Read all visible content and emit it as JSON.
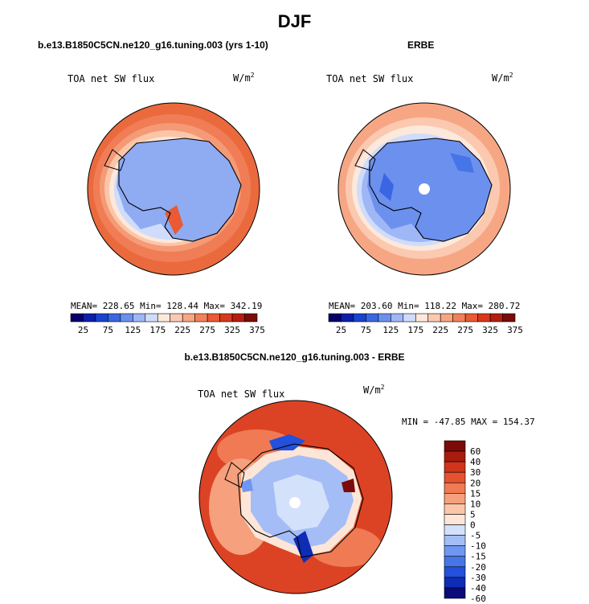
{
  "page_title": "DJF",
  "palette": {
    "absolute": [
      "#08006a",
      "#0c1fa8",
      "#1a43d0",
      "#3a66e2",
      "#6c90ee",
      "#9fb7f5",
      "#cfdcfb",
      "#fde8dc",
      "#fbc9b0",
      "#f7a684",
      "#f2805c",
      "#e95a35",
      "#d6391e",
      "#b51d10",
      "#7c0a08"
    ],
    "difference": [
      "#0a0a7a",
      "#0f2cb5",
      "#2350dc",
      "#4675e8",
      "#6f96f0",
      "#a4bdf6",
      "#d3e1fb",
      "#fde6d7",
      "#fbc6a8",
      "#f6a07d",
      "#ef7a53",
      "#e5522e",
      "#d0341a",
      "#a81c0e",
      "#7c0a08"
    ]
  },
  "panels": [
    {
      "header": "b.e13.B1850C5CN.ne120_g16.tuning.003 (yrs 1-10)",
      "variable": "TOA net SW flux",
      "units": "W/m",
      "units_exp": "2",
      "stats": "MEAN= 228.65   Min= 128.44   Max= 342.19",
      "colorbar_ticks": [
        "25",
        "75",
        "125",
        "175",
        "225",
        "275",
        "325",
        "375"
      ]
    },
    {
      "header": "ERBE",
      "variable": "TOA net SW flux",
      "units": "W/m",
      "units_exp": "2",
      "stats": "MEAN= 203.60   Min= 118.22   Max= 280.72",
      "colorbar_ticks": [
        "25",
        "75",
        "125",
        "175",
        "225",
        "275",
        "325",
        "375"
      ]
    },
    {
      "header": "b.e13.B1850C5CN.ne120_g16.tuning.003 - ERBE",
      "variable": "TOA net SW flux",
      "units": "W/m",
      "units_exp": "2",
      "stats": "MIN = -47.85 MAX = 154.37",
      "colorbar_ticks": [
        "60",
        "40",
        "30",
        "20",
        "15",
        "10",
        "5",
        "0",
        "-5",
        "-10",
        "-15",
        "-20",
        "-30",
        "-40",
        "-60"
      ]
    }
  ],
  "chart_data": [
    {
      "type": "heatmap",
      "title": "b.e13.B1850C5CN.ne120_g16.tuning.003 (yrs 1-10)",
      "projection": "south polar stereographic",
      "season": "DJF",
      "variable": "TOA net SW flux",
      "units": "W/m2",
      "mean": 228.65,
      "min": 128.44,
      "max": 342.19,
      "colorbar_levels": [
        25,
        50,
        75,
        100,
        125,
        150,
        175,
        200,
        225,
        250,
        275,
        300,
        325,
        350,
        375
      ]
    },
    {
      "type": "heatmap",
      "title": "ERBE",
      "projection": "south polar stereographic",
      "season": "DJF",
      "variable": "TOA net SW flux",
      "units": "W/m2",
      "mean": 203.6,
      "min": 118.22,
      "max": 280.72,
      "colorbar_levels": [
        25,
        50,
        75,
        100,
        125,
        150,
        175,
        200,
        225,
        250,
        275,
        300,
        325,
        350,
        375
      ]
    },
    {
      "type": "heatmap",
      "title": "b.e13.B1850C5CN.ne120_g16.tuning.003 - ERBE",
      "projection": "south polar stereographic",
      "season": "DJF",
      "variable": "TOA net SW flux",
      "units": "W/m2",
      "min": -47.85,
      "max": 154.37,
      "colorbar_levels": [
        -60,
        -40,
        -30,
        -20,
        -15,
        -10,
        -5,
        0,
        5,
        10,
        15,
        20,
        30,
        40,
        60
      ]
    }
  ]
}
